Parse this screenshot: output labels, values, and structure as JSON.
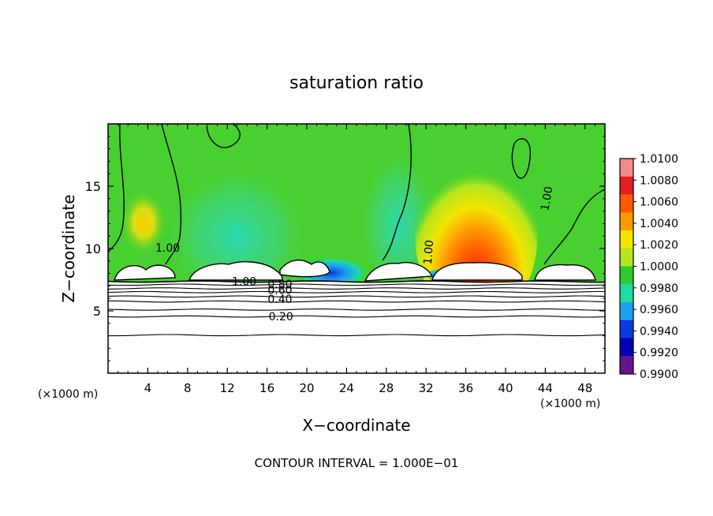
{
  "chart_data": {
    "type": "heatmap",
    "title": "saturation ratio",
    "xlabel": "X−coordinate",
    "ylabel": "Z−coordinate",
    "x_unit": "(×1000 m)",
    "y_unit": "(×1000 m)",
    "xlim": [
      0,
      50
    ],
    "ylim": [
      0,
      20
    ],
    "x_ticks": [
      4,
      8,
      12,
      16,
      20,
      24,
      28,
      32,
      36,
      40,
      44,
      48
    ],
    "y_ticks": [
      5,
      10,
      15
    ],
    "colorbar": {
      "ticks": [
        "1.0100",
        "1.0080",
        "1.0060",
        "1.0040",
        "1.0020",
        "1.0000",
        "0.9980",
        "0.9960",
        "0.9940",
        "0.9920",
        "0.9900"
      ],
      "colors": [
        "#f08c8c",
        "#e61e1e",
        "#ff5a00",
        "#ff9900",
        "#f2e600",
        "#b4e61e",
        "#30c830",
        "#1edca0",
        "#1ea0f0",
        "#0a3cdc",
        "#0000b4",
        "#64148c"
      ]
    },
    "contour_labels": [
      {
        "text": "1.00",
        "x": 13.7,
        "z": 7.3
      },
      {
        "text": "0.80",
        "x": 17.3,
        "z": 7.1
      },
      {
        "text": "0.60",
        "x": 17.3,
        "z": 6.6
      },
      {
        "text": "0.40",
        "x": 17.3,
        "z": 5.9
      },
      {
        "text": "0.20",
        "x": 17.4,
        "z": 4.5
      },
      {
        "text": "1.00",
        "x": 32.3,
        "z": 9.7
      },
      {
        "text": "1.00",
        "x": 44.2,
        "z": 14.0
      },
      {
        "text": "1.00",
        "x": 6.0,
        "z": 10.0
      }
    ],
    "contour_levels_z": [
      7.35,
      7.1,
      6.8,
      6.5,
      6.15,
      5.75,
      5.1,
      4.55,
      3.05
    ],
    "contour_interval_text": "CONTOUR INTERVAL = 1.000E−01"
  }
}
